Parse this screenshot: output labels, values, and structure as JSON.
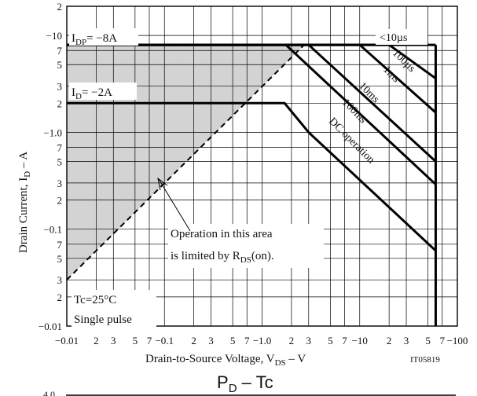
{
  "chart_data": {
    "type": "line",
    "title": "",
    "xlabel_parts": [
      "Drain-to-Source Voltage, V",
      "DS",
      " – V"
    ],
    "ylabel_parts": [
      "Drain Current, I",
      "D",
      " – A"
    ],
    "x_scale": "log",
    "y_scale": "log",
    "xlim": [
      0.01,
      100
    ],
    "ylim": [
      0.01,
      20
    ],
    "grid": true,
    "x_tick_labels": [
      {
        "v": 0.01,
        "t": "−0.01"
      },
      {
        "v": 0.02,
        "t": "2"
      },
      {
        "v": 0.03,
        "t": "3"
      },
      {
        "v": 0.05,
        "t": "5"
      },
      {
        "v": 0.07,
        "t": "7"
      },
      {
        "v": 0.1,
        "t": "−0.1"
      },
      {
        "v": 0.2,
        "t": "2"
      },
      {
        "v": 0.3,
        "t": "3"
      },
      {
        "v": 0.5,
        "t": "5"
      },
      {
        "v": 0.7,
        "t": "7"
      },
      {
        "v": 1,
        "t": "−1.0"
      },
      {
        "v": 2,
        "t": "2"
      },
      {
        "v": 3,
        "t": "3"
      },
      {
        "v": 5,
        "t": "5"
      },
      {
        "v": 7,
        "t": "7"
      },
      {
        "v": 10,
        "t": "−10"
      },
      {
        "v": 20,
        "t": "2"
      },
      {
        "v": 30,
        "t": "3"
      },
      {
        "v": 50,
        "t": "5"
      },
      {
        "v": 70,
        "t": "7"
      },
      {
        "v": 100,
        "t": "−100"
      }
    ],
    "y_tick_labels": [
      {
        "v": 0.01,
        "t": "−0.01"
      },
      {
        "v": 0.02,
        "t": "2"
      },
      {
        "v": 0.03,
        "t": "3"
      },
      {
        "v": 0.05,
        "t": "5"
      },
      {
        "v": 0.07,
        "t": "7"
      },
      {
        "v": 0.1,
        "t": "−0.1"
      },
      {
        "v": 0.2,
        "t": "2"
      },
      {
        "v": 0.3,
        "t": "3"
      },
      {
        "v": 0.5,
        "t": "5"
      },
      {
        "v": 0.7,
        "t": "7"
      },
      {
        "v": 1,
        "t": "−1.0"
      },
      {
        "v": 2,
        "t": "2"
      },
      {
        "v": 3,
        "t": "3"
      },
      {
        "v": 5,
        "t": "5"
      },
      {
        "v": 7,
        "t": "7"
      },
      {
        "v": 10,
        "t": "−10"
      },
      {
        "v": 20,
        "t": "2"
      }
    ],
    "series": [
      {
        "name": "<10µs",
        "x": [
          0.01,
          60
        ],
        "y": [
          8,
          8
        ]
      },
      {
        "name": "100µs",
        "x": [
          0.01,
          20,
          60
        ],
        "y": [
          8,
          8,
          3.6
        ]
      },
      {
        "name": "1ms",
        "x": [
          0.01,
          10,
          60
        ],
        "y": [
          8,
          8,
          1.6
        ]
      },
      {
        "name": "10ms",
        "x": [
          0.01,
          3,
          60
        ],
        "y": [
          8,
          8,
          0.5
        ]
      },
      {
        "name": "100ms",
        "x": [
          0.01,
          1.75,
          60
        ],
        "y": [
          8,
          8,
          0.29
        ]
      },
      {
        "name": "DC operation",
        "x": [
          0.01,
          1.7,
          3,
          60
        ],
        "y": [
          2,
          2,
          1,
          0.06
        ]
      },
      {
        "name": "R_DS(on) limit",
        "x": [
          0.01,
          2.7
        ],
        "y": [
          0.03,
          8
        ]
      }
    ],
    "vertical_limit": {
      "x": 60,
      "y": [
        0.01,
        8
      ]
    },
    "shaded_region": "area left of the R_DS(on) limit line, below 8 A",
    "annotations": {
      "idp": {
        "main": "I",
        "sub": "DP",
        "rest": "= −8A"
      },
      "id": {
        "main": "I",
        "sub": "D",
        "rest": "= −2A"
      },
      "rds_line1": "Operation in this area",
      "rds_line2": {
        "main": "is limited by R",
        "sub": "DS",
        "rest": "(on)."
      },
      "tc_line1": "Tc=25°C",
      "tc_line2": "Single pulse",
      "code": "IT05819"
    },
    "line_labels": {
      "t10us": "<10µs",
      "t100us": "100µs",
      "t1ms": "1ms",
      "t10ms": "10ms",
      "t100ms": "100ms",
      "dc": "DC operation"
    },
    "second_chart_title": {
      "main": "P",
      "sub": "D",
      "rest": "  –  Tc"
    },
    "second_chart_tick": "4.0"
  }
}
